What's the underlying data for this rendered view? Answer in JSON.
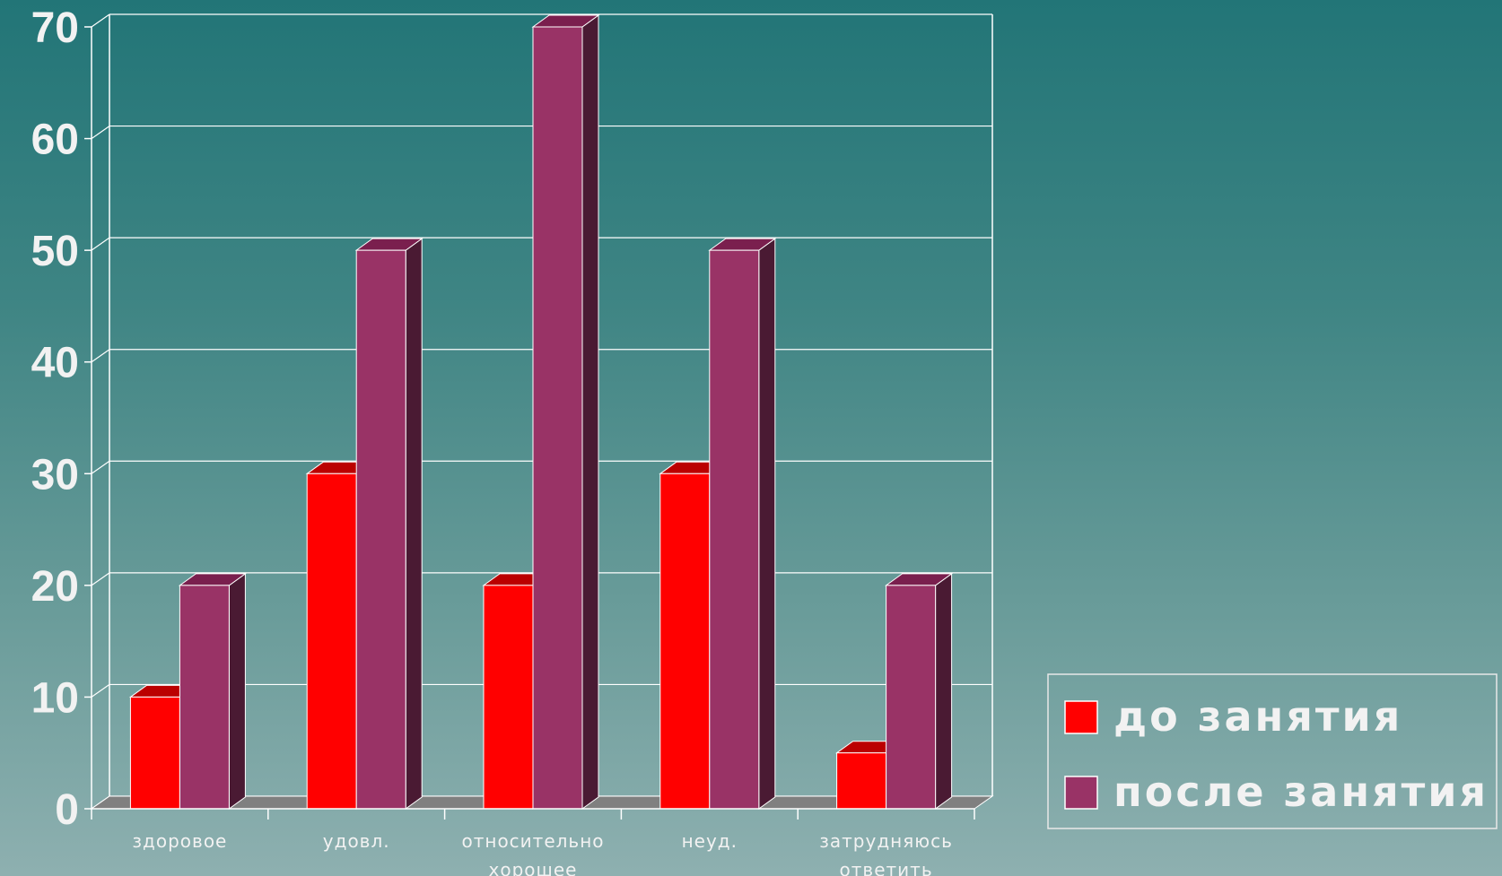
{
  "chart_data": {
    "type": "bar",
    "categories": [
      [
        "здоровое"
      ],
      [
        "удовл."
      ],
      [
        "относительно",
        "хорошее"
      ],
      [
        "неуд."
      ],
      [
        "затрудняюсь",
        "ответить"
      ]
    ],
    "series": [
      {
        "name": "до занятия",
        "values": [
          10,
          30,
          20,
          30,
          5
        ],
        "color": "#ff0000",
        "top_color": "#bb0000",
        "side_color": "#770000"
      },
      {
        "name": "после занятия",
        "values": [
          20,
          50,
          70,
          50,
          20
        ],
        "color": "#993366",
        "top_color": "#7a1f4e",
        "side_color": "#4a1a33"
      }
    ],
    "y_ticks": [
      "0",
      "10",
      "20",
      "30",
      "40",
      "50",
      "60",
      "70"
    ],
    "ylim": [
      0,
      70
    ],
    "grid": true,
    "legend_position": "bottom-right",
    "colors": {
      "grid": "#ffffff",
      "text": "#f2f2f2",
      "floor": "#808080"
    }
  }
}
